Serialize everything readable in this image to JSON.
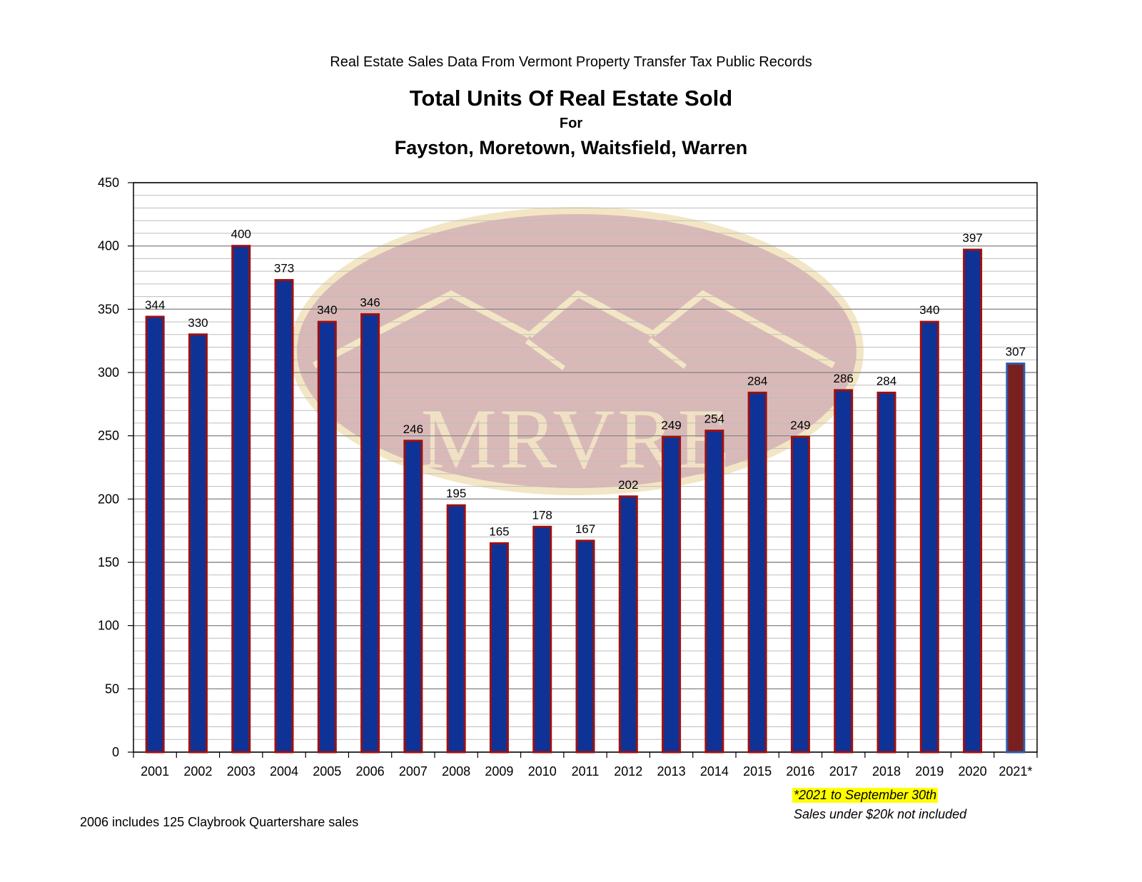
{
  "header": {
    "supertitle": "Real Estate Sales Data From Vermont Property Transfer Tax Public Records",
    "title": "Total Units Of Real Estate Sold",
    "title_for": "For",
    "title_towns": "Fayston, Moretown, Waitsfield, Warren"
  },
  "watermark": {
    "text": "MRVRE"
  },
  "notes": {
    "claybrook": "2006 includes 125 Claybrook Quartershare sales",
    "partial_year": "*2021 to September 30th",
    "exclusion": "Sales under $20k not included"
  },
  "colors": {
    "bar_fill": "#0f3297",
    "bar_border": "#9b1111",
    "highlight_fill": "#7a1f1f",
    "highlight_border": "#2e5aa6",
    "gridline": "#bdbdbd",
    "watermark_oval": "#cfa8a6",
    "watermark_ring": "#f3e6c5",
    "note_highlight": "#ffff00"
  },
  "chart_data": {
    "type": "bar",
    "title": "Total Units Of Real Estate Sold",
    "subtitle": "Fayston, Moretown, Waitsfield, Warren",
    "xlabel": "",
    "ylabel": "",
    "ylim": [
      0,
      450
    ],
    "yticks": [
      0,
      50,
      100,
      150,
      200,
      250,
      300,
      350,
      400,
      450
    ],
    "grid": true,
    "legend": "none",
    "categories": [
      "2001",
      "2002",
      "2003",
      "2004",
      "2005",
      "2006",
      "2007",
      "2008",
      "2009",
      "2010",
      "2011",
      "2012",
      "2013",
      "2014",
      "2015",
      "2016",
      "2017",
      "2018",
      "2019",
      "2020",
      "2021*"
    ],
    "values": [
      344,
      330,
      400,
      373,
      340,
      346,
      246,
      195,
      165,
      178,
      167,
      202,
      249,
      254,
      284,
      249,
      286,
      284,
      340,
      397,
      307
    ],
    "highlighted_category": "2021*"
  }
}
